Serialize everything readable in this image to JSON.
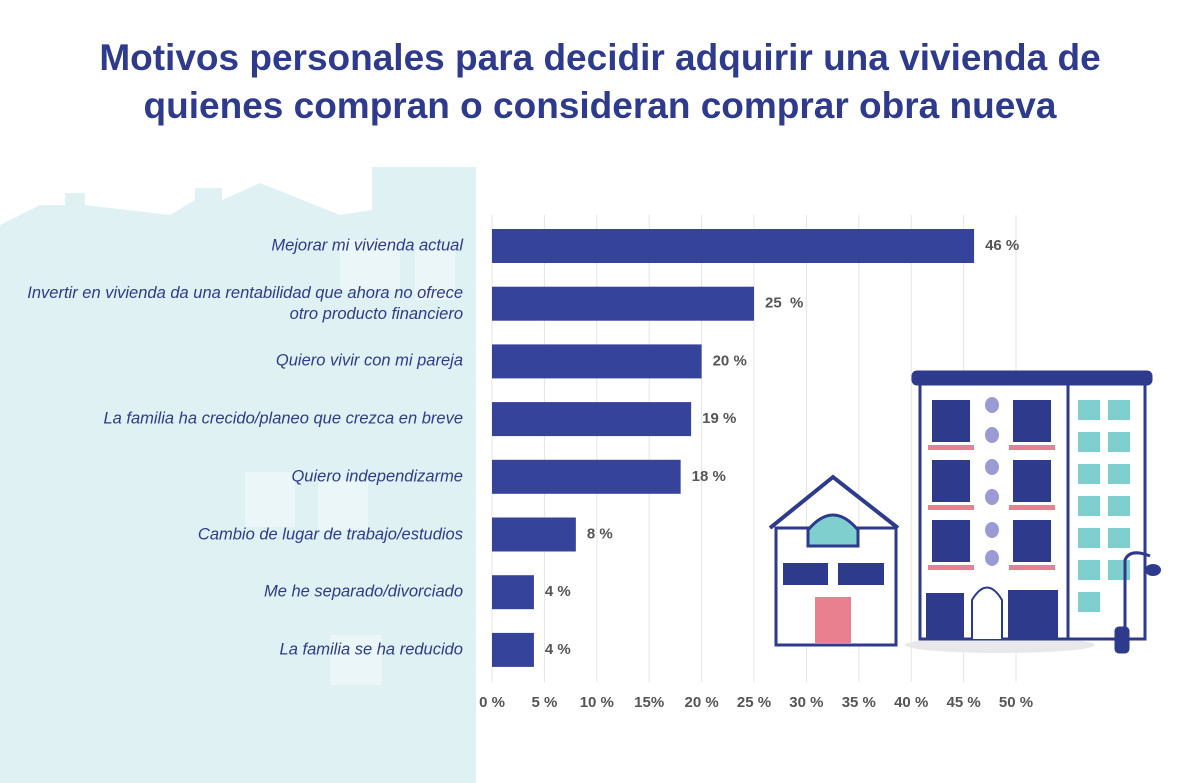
{
  "chart_data": {
    "type": "bar",
    "orientation": "horizontal",
    "title": "Motivos personales para decidir adquirir una vivienda de quienes compran o consideran comprar obra nueva",
    "categories": [
      "Mejorar mi vivienda actual",
      "Invertir en vivienda da una rentabilidad que ahora no ofrece otro producto financiero",
      "Quiero vivir con mi pareja",
      "La familia ha crecido/planeo que crezca en breve",
      "Quiero independizarme",
      "Cambio de lugar de trabajo/estudios",
      "Me he separado/divorciado",
      "La familia se ha reducido"
    ],
    "values": [
      46,
      25,
      20,
      19,
      18,
      8,
      4,
      4
    ],
    "value_labels": [
      "46 %",
      "25  %",
      "20 %",
      "19 %",
      "18 %",
      "8 %",
      "4 %",
      "4 %"
    ],
    "color": "#36439a",
    "xlim": [
      0,
      50
    ],
    "xticks": [
      {
        "value": 0,
        "label": "0 %"
      },
      {
        "value": 5,
        "label": "5 %"
      },
      {
        "value": 10,
        "label": "10 %"
      },
      {
        "value": 15,
        "label": "15%"
      },
      {
        "value": 20,
        "label": "20 %"
      },
      {
        "value": 25,
        "label": "25 %"
      },
      {
        "value": 30,
        "label": "30 %"
      },
      {
        "value": 35,
        "label": "35 %"
      },
      {
        "value": 40,
        "label": "40 %"
      },
      {
        "value": 45,
        "label": "45 %"
      },
      {
        "value": 50,
        "label": "50 %"
      }
    ],
    "grid": true
  }
}
